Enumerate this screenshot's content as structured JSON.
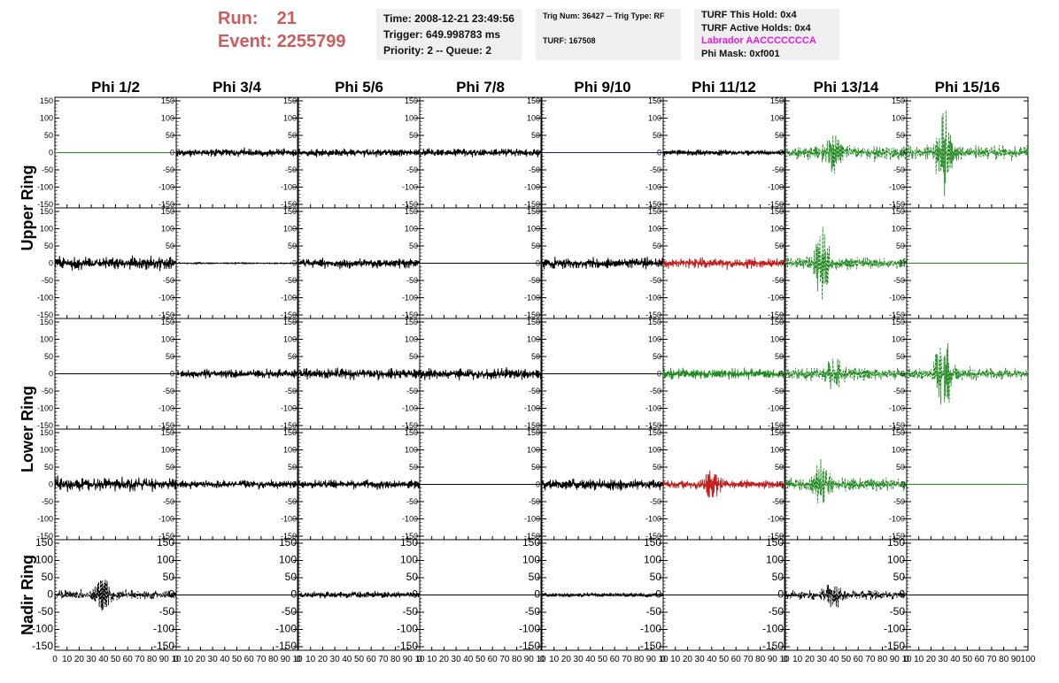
{
  "header": {
    "run_label": "Run:",
    "run_value": "21",
    "event_label": "Event:",
    "event_value": "2255799",
    "time": "Time: 2008-12-21 23:49:56",
    "trigger": "Trigger: 649.998783 ms",
    "priority": "Priority: 2 -- Queue: 2",
    "trig_num": "Trig Num: 36427 -- Trig Type: RF",
    "turf": "TURF: 167508",
    "turf_hold": "TURF This Hold: 0x4",
    "turf_active": "TURF Active Holds: 0x4",
    "labrador": "Labrador AACCCCCCCA",
    "phi_mask": "Phi Mask: 0xf001",
    "magenta_color": "#e619e6",
    "title_color": "#cd5c5c"
  },
  "chart_data": {
    "type": "line",
    "columns": [
      "Phi 1/2",
      "Phi 3/4",
      "Phi 5/6",
      "Phi 7/8",
      "Phi 9/10",
      "Phi 11/12",
      "Phi 13/14",
      "Phi 15/16"
    ],
    "row_labels": [
      {
        "label": "Upper Ring",
        "spans_panel_rows": [
          0,
          1
        ]
      },
      {
        "label": "Lower Ring",
        "spans_panel_rows": [
          2,
          3
        ]
      },
      {
        "label": "Nadir Ring",
        "spans_panel_rows": [
          4
        ]
      }
    ],
    "ylim": [
      -150,
      150
    ],
    "xlim": [
      0,
      100
    ],
    "y_ticks": [
      -150,
      -100,
      -50,
      0,
      50,
      100,
      150
    ],
    "x_ticks": [
      0,
      10,
      20,
      30,
      40,
      50,
      60,
      70,
      80,
      90,
      100
    ],
    "x_tick_labels_bottom": "0 10 20 30 40 50 60 70 80 90 10 0 10 20 30 40 50 60 70 80 90 10 0 10 20 30 40 50 60 70 80 90 10 0 10 20 30 40 50 60 70 80 90 10 0 10 20 30 40 50 60 70 80 90 10 0 10 20 30 40 50 60 70 80 90 10 0 10 20 30 40 50 60 70 80 90 10 0 10 20 30 40 50 60 70 80 90 100",
    "colors": {
      "black": "#000000",
      "green": "#228b22",
      "red": "#c42020",
      "blue": "#1a1aa6"
    },
    "panels": [
      [
        {
          "trace": "flat",
          "color": "green",
          "amp": 0
        },
        {
          "trace": "noise",
          "color": "black",
          "amp": 12
        },
        {
          "trace": "noise",
          "color": "black",
          "amp": 12
        },
        {
          "trace": "noise",
          "color": "black",
          "amp": 12
        },
        {
          "trace": "flat",
          "color": "blue",
          "amp": 0
        },
        {
          "trace": "noise",
          "color": "black",
          "amp": 8
        },
        {
          "trace": "dashed-noise",
          "color": "green",
          "amp": 22,
          "burst_at": 40,
          "burst_amp": 55
        },
        {
          "trace": "dashed-noise",
          "color": "green",
          "amp": 22,
          "burst_at": 30,
          "burst_amp": 140
        }
      ],
      [
        {
          "trace": "noise",
          "color": "black",
          "amp": 20
        },
        {
          "trace": "noise",
          "color": "black",
          "amp": 2
        },
        {
          "trace": "noise",
          "color": "black",
          "amp": 14
        },
        {
          "trace": "flat",
          "color": "black",
          "amp": 0
        },
        {
          "trace": "noise",
          "color": "black",
          "amp": 16
        },
        {
          "trace": "noise",
          "color": "red",
          "amp": 16
        },
        {
          "trace": "dashed-noise",
          "color": "green",
          "amp": 18,
          "burst_at": 30,
          "burst_amp": 110
        },
        {
          "trace": "flat",
          "color": "green",
          "amp": 0
        }
      ],
      [
        {
          "trace": "flat",
          "color": "black",
          "amp": 0
        },
        {
          "trace": "noise",
          "color": "black",
          "amp": 13
        },
        {
          "trace": "noise",
          "color": "black",
          "amp": 16
        },
        {
          "trace": "noise",
          "color": "black",
          "amp": 16
        },
        {
          "trace": "flat",
          "color": "black",
          "amp": 0
        },
        {
          "trace": "noise",
          "color": "green",
          "amp": 16
        },
        {
          "trace": "dashed-noise",
          "color": "green",
          "amp": 18,
          "burst_at": 40,
          "burst_amp": 55
        },
        {
          "trace": "dashed-noise",
          "color": "green",
          "amp": 18,
          "burst_at": 30,
          "burst_amp": 150
        }
      ],
      [
        {
          "trace": "noise",
          "color": "black",
          "amp": 20
        },
        {
          "trace": "noise",
          "color": "black",
          "amp": 12
        },
        {
          "trace": "noise",
          "color": "black",
          "amp": 14
        },
        {
          "trace": "flat",
          "color": "black",
          "amp": 0
        },
        {
          "trace": "noise",
          "color": "black",
          "amp": 16
        },
        {
          "trace": "noise",
          "color": "red",
          "amp": 14,
          "burst_at": 40,
          "burst_amp": 50
        },
        {
          "trace": "dashed-noise",
          "color": "green",
          "amp": 20,
          "burst_at": 30,
          "burst_amp": 80
        },
        {
          "trace": "flat",
          "color": "green",
          "amp": 0
        }
      ],
      [
        {
          "trace": "dashed-noise",
          "color": "black",
          "amp": 14,
          "burst_at": 40,
          "burst_amp": 60
        },
        {
          "trace": "flat",
          "color": "black",
          "amp": 0
        },
        {
          "trace": "noise",
          "color": "black",
          "amp": 10
        },
        {
          "trace": "flat",
          "color": "black",
          "amp": 0
        },
        {
          "trace": "noise",
          "color": "black",
          "amp": 6
        },
        {
          "trace": "flat",
          "color": "black",
          "amp": 0
        },
        {
          "trace": "dashed-noise",
          "color": "black",
          "amp": 14,
          "burst_at": 40,
          "burst_amp": 50
        },
        {
          "trace": "flat",
          "color": "black",
          "amp": 0
        }
      ]
    ]
  }
}
